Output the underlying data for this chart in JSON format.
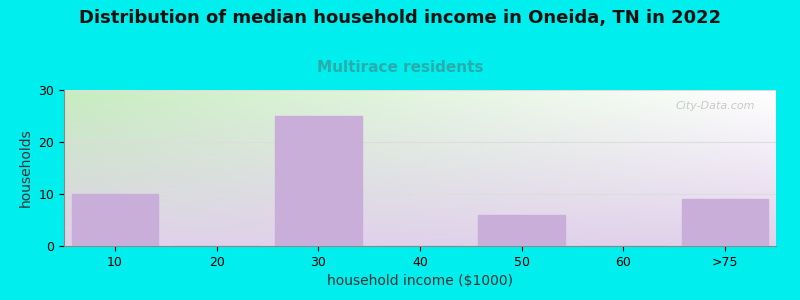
{
  "title": "Distribution of median household income in Oneida, TN in 2022",
  "subtitle": "Multirace residents",
  "xlabel": "household income ($1000)",
  "ylabel": "households",
  "categories": [
    "10",
    "20",
    "30",
    "40",
    "50",
    "60",
    ">75"
  ],
  "values": [
    10,
    0,
    25,
    0,
    6,
    0,
    9
  ],
  "bar_color": "#c9aed9",
  "bg_color": "#00eeee",
  "title_fontsize": 13,
  "title_color": "#111111",
  "subtitle_fontsize": 11,
  "subtitle_color": "#2aacac",
  "axis_label_fontsize": 10,
  "tick_fontsize": 9,
  "ylim": [
    0,
    30
  ],
  "yticks": [
    0,
    10,
    20,
    30
  ],
  "watermark": "City-Data.com",
  "grid_color": "#dddddd"
}
